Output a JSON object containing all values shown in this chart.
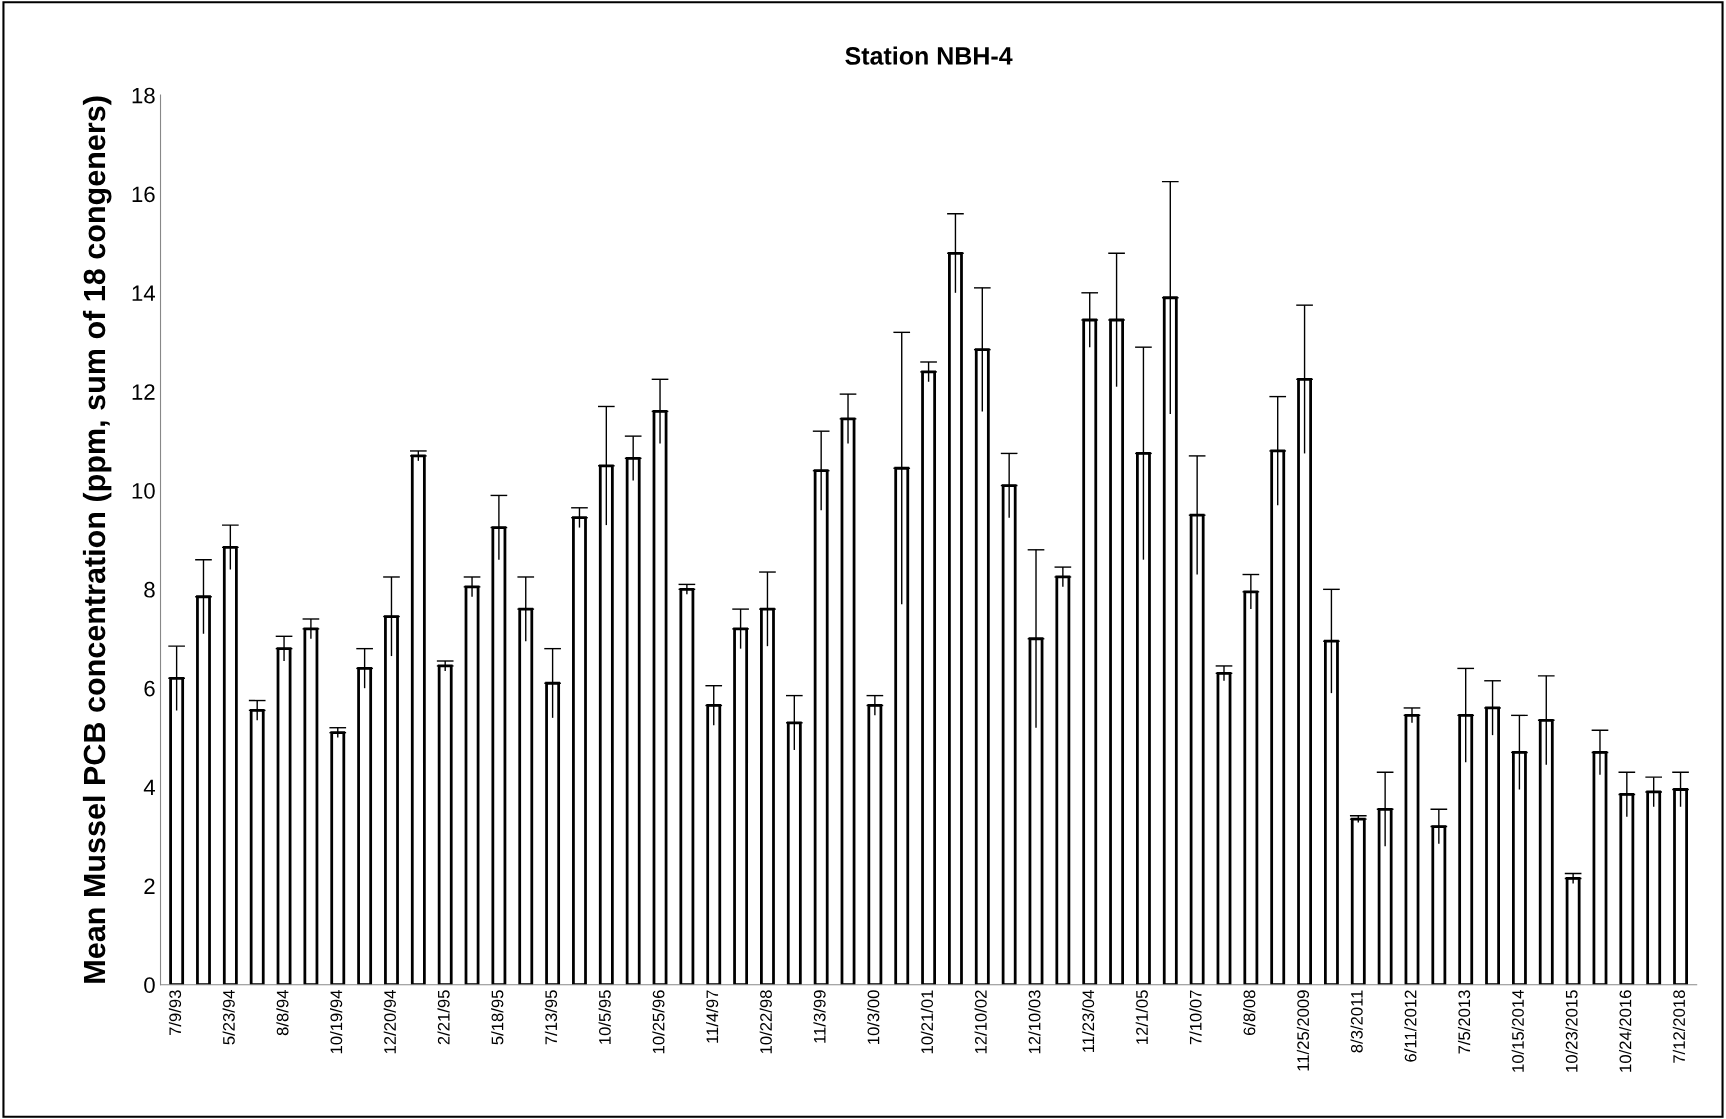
{
  "chart_data": {
    "type": "bar",
    "title": "Station NBH-4",
    "ylabel": "Mean Mussel PCB concentration (ppm, sum of 18 congeners)",
    "categories": [
      "7/9/93",
      null,
      "5/23/94",
      null,
      "8/8/94",
      null,
      "10/19/94",
      null,
      "12/20/94",
      null,
      "2/21/95",
      null,
      "5/18/95",
      null,
      "7/13/95",
      null,
      "10/5/95",
      null,
      "10/25/96",
      null,
      "11/4/97",
      null,
      "10/22/98",
      null,
      "11/3/99",
      null,
      "10/3/00",
      null,
      "10/21/01",
      null,
      "12/10/02",
      null,
      "12/10/03",
      null,
      "11/23/04",
      null,
      "12/1/05",
      null,
      "7/10/07",
      null,
      "6/8/08",
      null,
      "11/25/2009",
      null,
      "8/3/2011",
      null,
      "6/11/2012",
      null,
      "7/5/2013",
      null,
      "10/15/2014",
      null,
      "10/23/2015",
      null,
      "10/24/2016",
      null,
      "7/12/2018"
    ],
    "values": [
      6.2,
      7.85,
      8.85,
      5.55,
      6.8,
      7.2,
      5.1,
      6.4,
      7.45,
      10.7,
      6.45,
      8.05,
      9.25,
      7.6,
      6.1,
      9.45,
      10.5,
      10.65,
      11.6,
      8.0,
      5.65,
      7.2,
      7.6,
      5.3,
      10.4,
      11.45,
      5.65,
      10.45,
      12.4,
      14.8,
      12.85,
      10.1,
      7.0,
      8.25,
      13.45,
      13.45,
      10.75,
      13.9,
      9.5,
      6.3,
      7.95,
      10.8,
      12.25,
      6.95,
      3.35,
      3.55,
      5.45,
      3.2,
      5.45,
      5.6,
      4.7,
      5.35,
      2.15,
      4.7,
      3.85,
      3.9,
      3.95
    ],
    "errors": [
      0.65,
      0.75,
      0.45,
      0.2,
      0.25,
      0.2,
      0.1,
      0.4,
      0.8,
      0.1,
      0.1,
      0.2,
      0.65,
      0.65,
      0.7,
      0.2,
      1.2,
      0.45,
      0.65,
      0.1,
      0.4,
      0.4,
      0.75,
      0.55,
      0.8,
      0.5,
      0.2,
      2.75,
      0.2,
      0.8,
      1.25,
      0.65,
      1.8,
      0.2,
      0.55,
      1.35,
      2.15,
      2.35,
      1.2,
      0.15,
      0.35,
      1.1,
      1.5,
      1.05,
      0.07,
      0.75,
      0.15,
      0.35,
      0.95,
      0.55,
      0.75,
      0.9,
      0.1,
      0.45,
      0.45,
      0.3,
      0.35
    ],
    "color": "#ffffff",
    "ylim": [
      0,
      18
    ],
    "yticks": [
      0,
      2,
      4,
      6,
      8,
      10,
      12,
      14,
      16,
      18
    ],
    "grid": false,
    "legend": false
  }
}
